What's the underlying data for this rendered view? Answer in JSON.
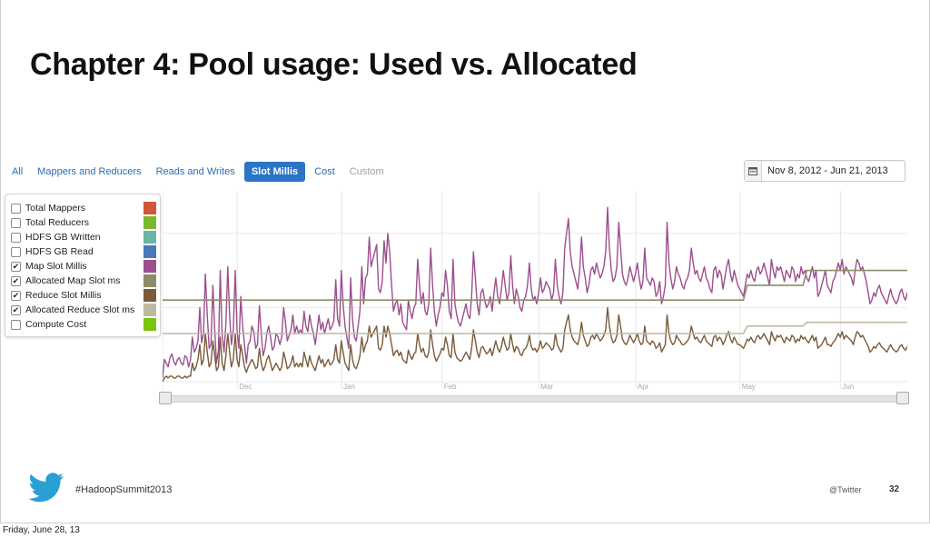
{
  "slide": {
    "title": "Chapter 4: Pool usage: Used vs. Allocated",
    "hashtag": "#HadoopSummit2013",
    "handle": "@Twitter",
    "page_number": "32",
    "footer_date": "Friday, June 28, 13"
  },
  "tabs": [
    {
      "label": "All",
      "active": false
    },
    {
      "label": "Mappers and Reducers",
      "active": false
    },
    {
      "label": "Reads and Writes",
      "active": false
    },
    {
      "label": "Slot Millis",
      "active": true
    },
    {
      "label": "Cost",
      "active": false
    },
    {
      "label": "Custom",
      "active": false,
      "disabled": true
    }
  ],
  "date_range": {
    "icon": "calendar-icon",
    "value": "Nov 8, 2012 - Jun 21, 2013"
  },
  "legend": [
    {
      "label": "Total Mappers",
      "checked": false,
      "color": "#d0573a"
    },
    {
      "label": "Total Reducers",
      "checked": false,
      "color": "#7ab82e"
    },
    {
      "label": "HDFS GB Written",
      "checked": false,
      "color": "#6bb5a8"
    },
    {
      "label": "HDFS GB Read",
      "checked": false,
      "color": "#4a78b8"
    },
    {
      "label": "Map Slot Millis",
      "checked": true,
      "color": "#9c4f8e"
    },
    {
      "label": "Allocated Map Slot ms",
      "checked": true,
      "color": "#8c8c6a"
    },
    {
      "label": "Reduce Slot Millis",
      "checked": true,
      "color": "#7a5a3a"
    },
    {
      "label": "Allocated Reduce Slot ms",
      "checked": true,
      "color": "#bdb9a3"
    },
    {
      "label": "Compute Cost",
      "checked": false,
      "color": "#7ac412"
    }
  ],
  "chart_data": {
    "type": "line",
    "x_ticks": [
      "Dec",
      "Jan",
      "Feb",
      "Mar",
      "Apr",
      "May",
      "Jun"
    ],
    "x_tick_pos": [
      0.11,
      0.25,
      0.385,
      0.515,
      0.645,
      0.785,
      0.92
    ],
    "grid": true,
    "yrange": [
      0,
      1
    ],
    "series": [
      {
        "name": "Map Slot Millis",
        "color": "#9c4f8e",
        "values": [
          0.02,
          0.12,
          0.1,
          0.08,
          0.13,
          0.15,
          0.11,
          0.09,
          0.12,
          0.13,
          0.1,
          0.09,
          0.14,
          0.13,
          0.08,
          0.12,
          0.24,
          0.16,
          0.18,
          0.22,
          0.4,
          0.21,
          0.26,
          0.58,
          0.36,
          0.18,
          0.2,
          0.52,
          0.28,
          0.1,
          0.17,
          0.6,
          0.25,
          0.16,
          0.31,
          0.62,
          0.36,
          0.2,
          0.28,
          0.6,
          0.28,
          0.18,
          0.46,
          0.3,
          0.2,
          0.1,
          0.2,
          0.22,
          0.3,
          0.27,
          0.18,
          0.2,
          0.41,
          0.26,
          0.14,
          0.18,
          0.26,
          0.3,
          0.24,
          0.17,
          0.19,
          0.26,
          0.24,
          0.2,
          0.24,
          0.4,
          0.32,
          0.22,
          0.25,
          0.28,
          0.36,
          0.26,
          0.3,
          0.26,
          0.28,
          0.26,
          0.38,
          0.3,
          0.27,
          0.36,
          0.3,
          0.26,
          0.2,
          0.28,
          0.36,
          0.28,
          0.32,
          0.26,
          0.3,
          0.34,
          0.28,
          0.3,
          0.33,
          0.55,
          0.34,
          0.3,
          0.6,
          0.42,
          0.3,
          0.24,
          0.18,
          0.56,
          0.34,
          0.24,
          0.22,
          0.3,
          0.38,
          0.62,
          0.42,
          0.56,
          0.58,
          0.78,
          0.62,
          0.66,
          0.7,
          0.74,
          0.5,
          0.48,
          0.54,
          0.76,
          0.64,
          0.8,
          0.7,
          0.52,
          0.38,
          0.42,
          0.44,
          0.36,
          0.42,
          0.32,
          0.3,
          0.28,
          0.44,
          0.38,
          0.34,
          0.4,
          0.42,
          0.66,
          0.52,
          0.42,
          0.48,
          0.38,
          0.36,
          0.42,
          0.72,
          0.52,
          0.38,
          0.3,
          0.36,
          0.4,
          0.48,
          0.46,
          0.6,
          0.52,
          0.38,
          0.34,
          0.66,
          0.42,
          0.36,
          0.32,
          0.3,
          0.34,
          0.38,
          0.42,
          0.36,
          0.34,
          0.46,
          0.7,
          0.56,
          0.42,
          0.36,
          0.48,
          0.5,
          0.44,
          0.4,
          0.42,
          0.46,
          0.38,
          0.48,
          0.56,
          0.46,
          0.42,
          0.5,
          0.6,
          0.52,
          0.44,
          0.48,
          0.68,
          0.52,
          0.42,
          0.5,
          0.46,
          0.4,
          0.38,
          0.44,
          0.46,
          0.52,
          0.64,
          0.5,
          0.44,
          0.46,
          0.42,
          0.48,
          0.56,
          0.48,
          0.5,
          0.54,
          0.52,
          0.5,
          0.44,
          0.48,
          0.66,
          0.52,
          0.46,
          0.42,
          0.48,
          0.72,
          0.8,
          0.88,
          0.7,
          0.62,
          0.58,
          0.54,
          0.5,
          0.6,
          0.78,
          0.62,
          0.56,
          0.48,
          0.52,
          0.6,
          0.62,
          0.58,
          0.64,
          0.6,
          0.56,
          0.58,
          0.62,
          0.7,
          0.94,
          0.72,
          0.6,
          0.54,
          0.56,
          0.62,
          0.86,
          0.72,
          0.58,
          0.54,
          0.52,
          0.56,
          0.62,
          0.58,
          0.54,
          0.58,
          0.64,
          0.56,
          0.5,
          0.54,
          0.72,
          0.56,
          0.54,
          0.52,
          0.56,
          0.54,
          0.46,
          0.48,
          0.54,
          0.42,
          0.46,
          0.52,
          0.86,
          0.64,
          0.56,
          0.5,
          0.54,
          0.62,
          0.58,
          0.56,
          0.52,
          0.5,
          0.54,
          0.56,
          0.6,
          0.72,
          0.64,
          0.58,
          0.6,
          0.56,
          0.54,
          0.58,
          0.62,
          0.56,
          0.54,
          0.5,
          0.48,
          0.6,
          0.62,
          0.56,
          0.6,
          0.58,
          0.5,
          0.56,
          0.62,
          0.66,
          0.58,
          0.54,
          0.6,
          0.56,
          0.52,
          0.5,
          0.48,
          0.46,
          0.52,
          0.58,
          0.56,
          0.6,
          0.56,
          0.54,
          0.6,
          0.62,
          0.58,
          0.6,
          0.64,
          0.6,
          0.56,
          0.52,
          0.66,
          0.6,
          0.56,
          0.62,
          0.6,
          0.62,
          0.58,
          0.54,
          0.6,
          0.58,
          0.56,
          0.62,
          0.6,
          0.54,
          0.58,
          0.56,
          0.62,
          0.58,
          0.6,
          0.56,
          0.54,
          0.58,
          0.62,
          0.56,
          0.6,
          0.46,
          0.48,
          0.52,
          0.56,
          0.6,
          0.52,
          0.5,
          0.48,
          0.54,
          0.56,
          0.6,
          0.64,
          0.6,
          0.66,
          0.58,
          0.62,
          0.6,
          0.58,
          0.56,
          0.52,
          0.6,
          0.66,
          0.64,
          0.6,
          0.62,
          0.58,
          0.54,
          0.48,
          0.42,
          0.44,
          0.48,
          0.46,
          0.5,
          0.52,
          0.48,
          0.46,
          0.44,
          0.42,
          0.46,
          0.5,
          0.46,
          0.44,
          0.42,
          0.44,
          0.48,
          0.5,
          0.46,
          0.44,
          0.48
        ]
      },
      {
        "name": "Reduce Slot Millis",
        "color": "#7a5a3a",
        "values": [
          0.0,
          0.02,
          0.03,
          0.02,
          0.03,
          0.03,
          0.02,
          0.02,
          0.03,
          0.03,
          0.02,
          0.02,
          0.03,
          0.02,
          0.03,
          0.03,
          0.1,
          0.06,
          0.08,
          0.12,
          0.2,
          0.09,
          0.12,
          0.26,
          0.16,
          0.08,
          0.1,
          0.22,
          0.14,
          0.06,
          0.08,
          0.24,
          0.1,
          0.06,
          0.14,
          0.26,
          0.16,
          0.08,
          0.12,
          0.26,
          0.12,
          0.08,
          0.2,
          0.14,
          0.08,
          0.05,
          0.08,
          0.1,
          0.12,
          0.1,
          0.07,
          0.08,
          0.18,
          0.1,
          0.06,
          0.08,
          0.12,
          0.14,
          0.1,
          0.06,
          0.08,
          0.1,
          0.08,
          0.06,
          0.08,
          0.16,
          0.12,
          0.07,
          0.08,
          0.1,
          0.14,
          0.08,
          0.1,
          0.08,
          0.1,
          0.08,
          0.16,
          0.12,
          0.08,
          0.14,
          0.1,
          0.08,
          0.06,
          0.1,
          0.14,
          0.1,
          0.12,
          0.08,
          0.1,
          0.12,
          0.09,
          0.1,
          0.12,
          0.2,
          0.12,
          0.1,
          0.22,
          0.16,
          0.1,
          0.08,
          0.06,
          0.2,
          0.12,
          0.08,
          0.07,
          0.1,
          0.14,
          0.24,
          0.16,
          0.2,
          0.22,
          0.3,
          0.24,
          0.26,
          0.28,
          0.3,
          0.18,
          0.17,
          0.2,
          0.3,
          0.24,
          0.3,
          0.26,
          0.2,
          0.14,
          0.16,
          0.17,
          0.14,
          0.16,
          0.12,
          0.11,
          0.1,
          0.17,
          0.14,
          0.12,
          0.15,
          0.16,
          0.26,
          0.2,
          0.16,
          0.18,
          0.14,
          0.13,
          0.16,
          0.28,
          0.2,
          0.14,
          0.11,
          0.13,
          0.15,
          0.18,
          0.17,
          0.24,
          0.2,
          0.14,
          0.13,
          0.26,
          0.16,
          0.13,
          0.12,
          0.11,
          0.12,
          0.14,
          0.16,
          0.14,
          0.12,
          0.18,
          0.28,
          0.22,
          0.16,
          0.13,
          0.18,
          0.19,
          0.17,
          0.15,
          0.16,
          0.18,
          0.14,
          0.18,
          0.22,
          0.18,
          0.16,
          0.19,
          0.24,
          0.2,
          0.17,
          0.18,
          0.26,
          0.2,
          0.16,
          0.19,
          0.18,
          0.15,
          0.14,
          0.17,
          0.18,
          0.2,
          0.25,
          0.19,
          0.17,
          0.18,
          0.16,
          0.18,
          0.22,
          0.18,
          0.19,
          0.21,
          0.2,
          0.19,
          0.17,
          0.18,
          0.26,
          0.2,
          0.18,
          0.16,
          0.18,
          0.28,
          0.32,
          0.36,
          0.28,
          0.24,
          0.22,
          0.21,
          0.2,
          0.24,
          0.32,
          0.25,
          0.22,
          0.19,
          0.2,
          0.24,
          0.25,
          0.23,
          0.26,
          0.24,
          0.22,
          0.23,
          0.25,
          0.28,
          0.4,
          0.3,
          0.24,
          0.21,
          0.22,
          0.25,
          0.36,
          0.3,
          0.23,
          0.21,
          0.2,
          0.22,
          0.25,
          0.23,
          0.21,
          0.23,
          0.26,
          0.22,
          0.2,
          0.21,
          0.3,
          0.22,
          0.21,
          0.2,
          0.22,
          0.21,
          0.18,
          0.19,
          0.21,
          0.16,
          0.18,
          0.2,
          0.36,
          0.26,
          0.22,
          0.2,
          0.21,
          0.25,
          0.23,
          0.22,
          0.2,
          0.2,
          0.21,
          0.22,
          0.24,
          0.3,
          0.26,
          0.23,
          0.24,
          0.22,
          0.21,
          0.23,
          0.25,
          0.22,
          0.21,
          0.2,
          0.19,
          0.24,
          0.25,
          0.22,
          0.24,
          0.23,
          0.2,
          0.22,
          0.25,
          0.27,
          0.23,
          0.21,
          0.24,
          0.22,
          0.2,
          0.2,
          0.19,
          0.18,
          0.2,
          0.23,
          0.22,
          0.24,
          0.22,
          0.21,
          0.24,
          0.25,
          0.23,
          0.24,
          0.26,
          0.24,
          0.22,
          0.2,
          0.27,
          0.24,
          0.22,
          0.25,
          0.24,
          0.25,
          0.23,
          0.21,
          0.24,
          0.23,
          0.22,
          0.25,
          0.24,
          0.21,
          0.23,
          0.22,
          0.25,
          0.23,
          0.24,
          0.22,
          0.21,
          0.23,
          0.25,
          0.22,
          0.24,
          0.18,
          0.19,
          0.2,
          0.22,
          0.24,
          0.2,
          0.2,
          0.19,
          0.21,
          0.22,
          0.24,
          0.26,
          0.24,
          0.27,
          0.23,
          0.25,
          0.24,
          0.23,
          0.22,
          0.2,
          0.24,
          0.27,
          0.26,
          0.24,
          0.25,
          0.23,
          0.21,
          0.19,
          0.16,
          0.17,
          0.19,
          0.18,
          0.2,
          0.21,
          0.19,
          0.18,
          0.17,
          0.16,
          0.18,
          0.2,
          0.18,
          0.17,
          0.16,
          0.17,
          0.19,
          0.2,
          0.18,
          0.17,
          0.19
        ]
      },
      {
        "name": "Allocated Map Slot ms",
        "color": "#8c8c6a",
        "steps": [
          [
            0.0,
            0.44
          ],
          [
            0.78,
            0.44
          ],
          [
            0.785,
            0.52
          ],
          [
            0.86,
            0.52
          ],
          [
            0.865,
            0.6
          ],
          [
            1.0,
            0.6
          ]
        ]
      },
      {
        "name": "Allocated Reduce Slot ms",
        "color": "#bdb9a3",
        "steps": [
          [
            0.0,
            0.26
          ],
          [
            0.78,
            0.26
          ],
          [
            0.785,
            0.3
          ],
          [
            0.86,
            0.3
          ],
          [
            0.865,
            0.32
          ],
          [
            1.0,
            0.32
          ]
        ]
      }
    ]
  }
}
